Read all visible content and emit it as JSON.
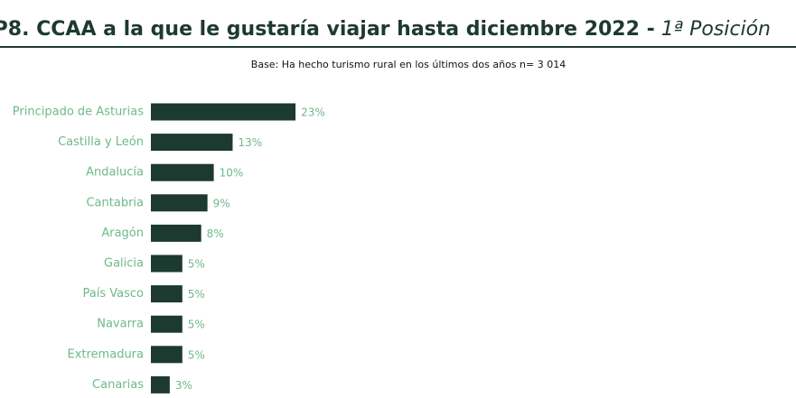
{
  "chart_data": {
    "type": "bar",
    "orientation": "horizontal",
    "title": [
      "P8. CCAA a la que le gustaría viajar hasta diciembre 2022 -",
      "1ª Posición"
    ],
    "subtitle": "Base: Ha hecho turismo rural en los últimos dos años n= 3 014",
    "categories": [
      "Principado de Asturias",
      "Castilla y León",
      "Andalucía",
      "Cantabria",
      "Aragón",
      "Galicia",
      "País Vasco",
      "Navarra",
      "Extremadura",
      "Canarias"
    ],
    "values": [
      23,
      13,
      10,
      9,
      8,
      5,
      5,
      5,
      5,
      3
    ],
    "value_labels": [
      "23%",
      "13%",
      "10%",
      "9%",
      "8%",
      "5%",
      "5%",
      "5%",
      "5%",
      "3%"
    ],
    "color": "#1d3a31"
  }
}
